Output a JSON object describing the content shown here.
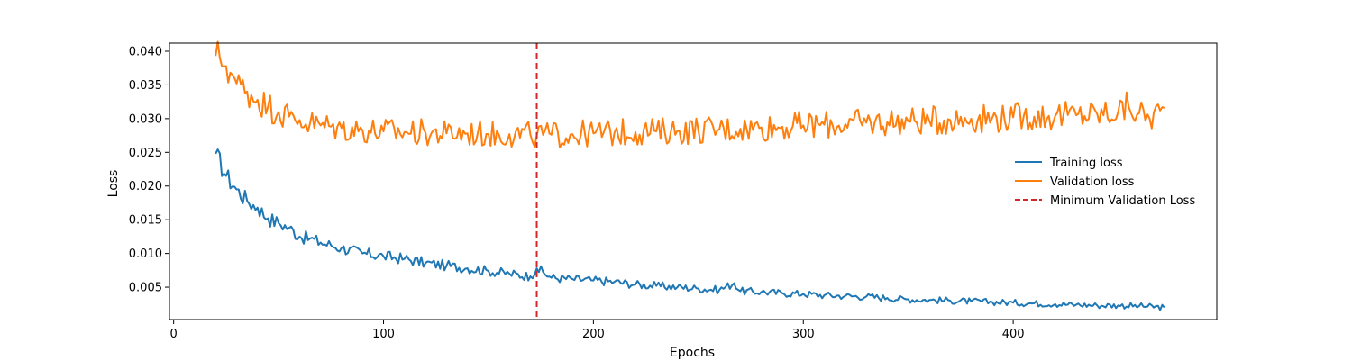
{
  "chart_data": {
    "type": "line",
    "title": "",
    "xlabel": "Epochs",
    "ylabel": "Loss",
    "xlim": [
      -2,
      497
    ],
    "ylim": [
      0.0002,
      0.0412
    ],
    "xticks": [
      0,
      100,
      200,
      300,
      400
    ],
    "yticks": [
      0.005,
      0.01,
      0.015,
      0.02,
      0.025,
      0.03,
      0.035,
      0.04
    ],
    "ytick_labels": [
      "0.005",
      "0.010",
      "0.015",
      "0.020",
      "0.025",
      "0.030",
      "0.035",
      "0.040"
    ],
    "grid": false,
    "legend_position": "center-right",
    "series": [
      {
        "name": "Training loss",
        "color": "#1f77b4",
        "x": [
          20,
          25,
          30,
          35,
          40,
          45,
          50,
          55,
          60,
          65,
          70,
          75,
          80,
          90,
          100,
          110,
          120,
          130,
          140,
          150,
          160,
          170,
          173,
          180,
          190,
          200,
          210,
          220,
          230,
          240,
          250,
          260,
          267,
          270,
          280,
          290,
          300,
          310,
          320,
          330,
          340,
          350,
          360,
          370,
          380,
          390,
          400,
          410,
          420,
          430,
          440,
          450,
          460,
          472
        ],
        "y": [
          0.0248,
          0.0215,
          0.0195,
          0.0178,
          0.0168,
          0.0152,
          0.0145,
          0.0138,
          0.0125,
          0.0122,
          0.0116,
          0.0112,
          0.0108,
          0.01,
          0.0096,
          0.0092,
          0.0086,
          0.0082,
          0.0078,
          0.0074,
          0.007,
          0.0066,
          0.0078,
          0.0064,
          0.0062,
          0.006,
          0.0058,
          0.0054,
          0.0052,
          0.005,
          0.0048,
          0.0046,
          0.0056,
          0.0044,
          0.0043,
          0.0041,
          0.004,
          0.0038,
          0.0037,
          0.0036,
          0.0034,
          0.0032,
          0.0031,
          0.003,
          0.0029,
          0.0028,
          0.0027,
          0.0026,
          0.0025,
          0.0024,
          0.0023,
          0.0023,
          0.0022,
          0.002
        ]
      },
      {
        "name": "Validation loss",
        "color": "#ff7f0e",
        "x": [
          20,
          22,
          25,
          28,
          30,
          35,
          40,
          45,
          50,
          55,
          60,
          65,
          70,
          75,
          80,
          90,
          100,
          110,
          120,
          130,
          140,
          150,
          160,
          170,
          173,
          180,
          190,
          200,
          210,
          220,
          230,
          240,
          250,
          260,
          270,
          280,
          290,
          300,
          310,
          320,
          330,
          340,
          350,
          360,
          370,
          380,
          390,
          400,
          410,
          420,
          430,
          440,
          450,
          455,
          460,
          465,
          470,
          472
        ],
        "y": [
          0.0393,
          0.039,
          0.0378,
          0.0365,
          0.0352,
          0.034,
          0.0328,
          0.0318,
          0.031,
          0.0303,
          0.0298,
          0.0293,
          0.029,
          0.0288,
          0.0286,
          0.0283,
          0.0281,
          0.028,
          0.0279,
          0.0278,
          0.0278,
          0.0277,
          0.0277,
          0.0276,
          0.0275,
          0.0276,
          0.0277,
          0.0278,
          0.0279,
          0.028,
          0.0281,
          0.0282,
          0.0283,
          0.0284,
          0.0285,
          0.0287,
          0.0288,
          0.029,
          0.0291,
          0.0292,
          0.0294,
          0.0295,
          0.0296,
          0.0297,
          0.0298,
          0.03,
          0.0301,
          0.0302,
          0.0303,
          0.0304,
          0.0305,
          0.0307,
          0.031,
          0.0318,
          0.0308,
          0.03,
          0.0312,
          0.0316
        ]
      }
    ],
    "reference_line": {
      "name": "Minimum Validation Loss",
      "orientation": "vertical",
      "x": 173,
      "color": "#d62728",
      "style": "dashed"
    }
  }
}
